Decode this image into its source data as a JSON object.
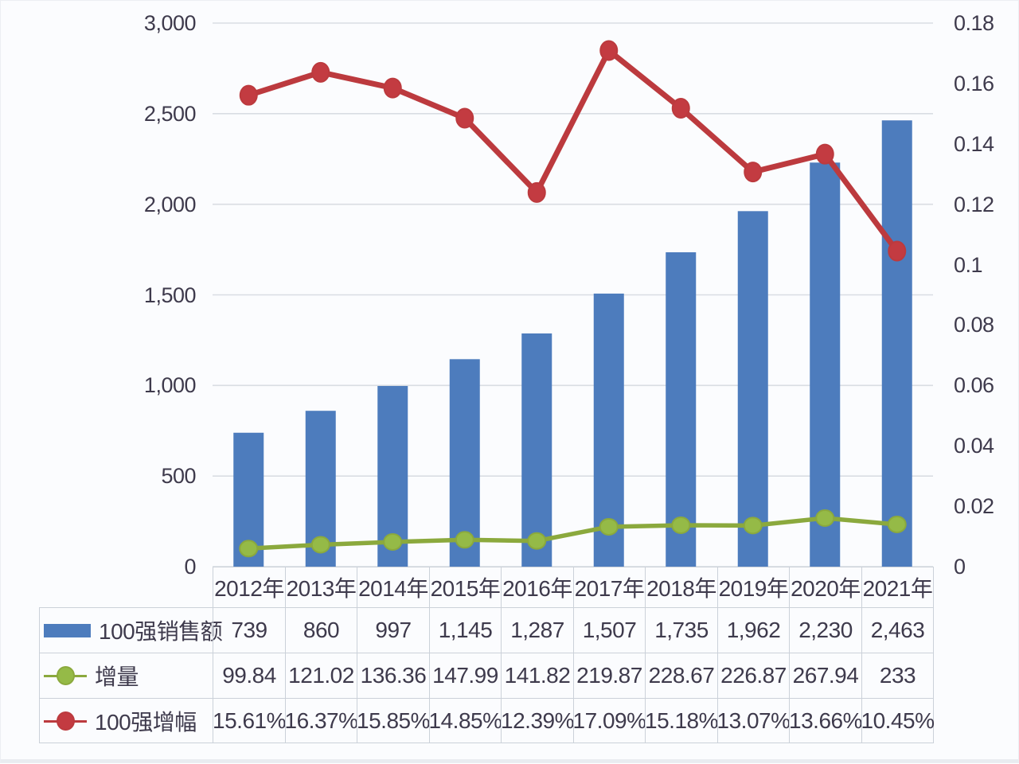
{
  "chart_data": {
    "type": "bar",
    "subtype": "combo-bar-line",
    "title": "",
    "categories": [
      "2012年",
      "2013年",
      "2014年",
      "2015年",
      "2016年",
      "2017年",
      "2018年",
      "2019年",
      "2020年",
      "2021年"
    ],
    "series": [
      {
        "id": "sales",
        "name": "100强销售额",
        "type": "bar",
        "axis": "left",
        "color": "#4d7cbd",
        "values": [
          739,
          860,
          997,
          1145,
          1287,
          1507,
          1735,
          1962,
          2230,
          2463
        ],
        "labels": [
          "739",
          "860",
          "997",
          "1,145",
          "1,287",
          "1,507",
          "1,735",
          "1,962",
          "2,230",
          "2,463"
        ]
      },
      {
        "id": "increment",
        "name": "增量",
        "type": "line",
        "axis": "left",
        "color": "#8ba93d",
        "marker_color": "#95ba47",
        "values": [
          99.84,
          121.02,
          136.36,
          147.99,
          141.82,
          219.87,
          228.67,
          226.87,
          267.94,
          233
        ],
        "labels": [
          "99.84",
          "121.02",
          "136.36",
          "147.99",
          "141.82",
          "219.87",
          "228.67",
          "226.87",
          "267.94",
          "233"
        ]
      },
      {
        "id": "growth",
        "name": "100强增幅",
        "type": "line",
        "axis": "right",
        "color": "#bc3a3e",
        "marker_color": "#c33b41",
        "values": [
          0.1561,
          0.1637,
          0.1585,
          0.1485,
          0.1239,
          0.1709,
          0.1518,
          0.1307,
          0.1366,
          0.1045
        ],
        "labels": [
          "15.61%",
          "16.37%",
          "15.85%",
          "14.85%",
          "12.39%",
          "17.09%",
          "15.18%",
          "13.07%",
          "13.66%",
          "10.45%"
        ]
      }
    ],
    "left_axis": {
      "min": 0,
      "max": 3000,
      "ticks": [
        "3,000",
        "2,500",
        "2,000",
        "1,500",
        "1,000",
        "500",
        "0"
      ]
    },
    "right_axis": {
      "min": 0,
      "max": 0.18,
      "ticks": [
        "0.18",
        "0.16",
        "0.14",
        "0.12",
        "0.1",
        "0.08",
        "0.06",
        "0.04",
        "0.02",
        "0"
      ]
    },
    "grid": true,
    "legend_position": "data-table-left"
  },
  "colors": {
    "grid": "#d9dde3",
    "table_border": "#cbd1d9",
    "text": "#3e3a4c",
    "background": "#fbfcfe",
    "bar_blue": "#4d7cbd",
    "line_green": "#8ba93d",
    "line_red": "#bc3a3e"
  }
}
